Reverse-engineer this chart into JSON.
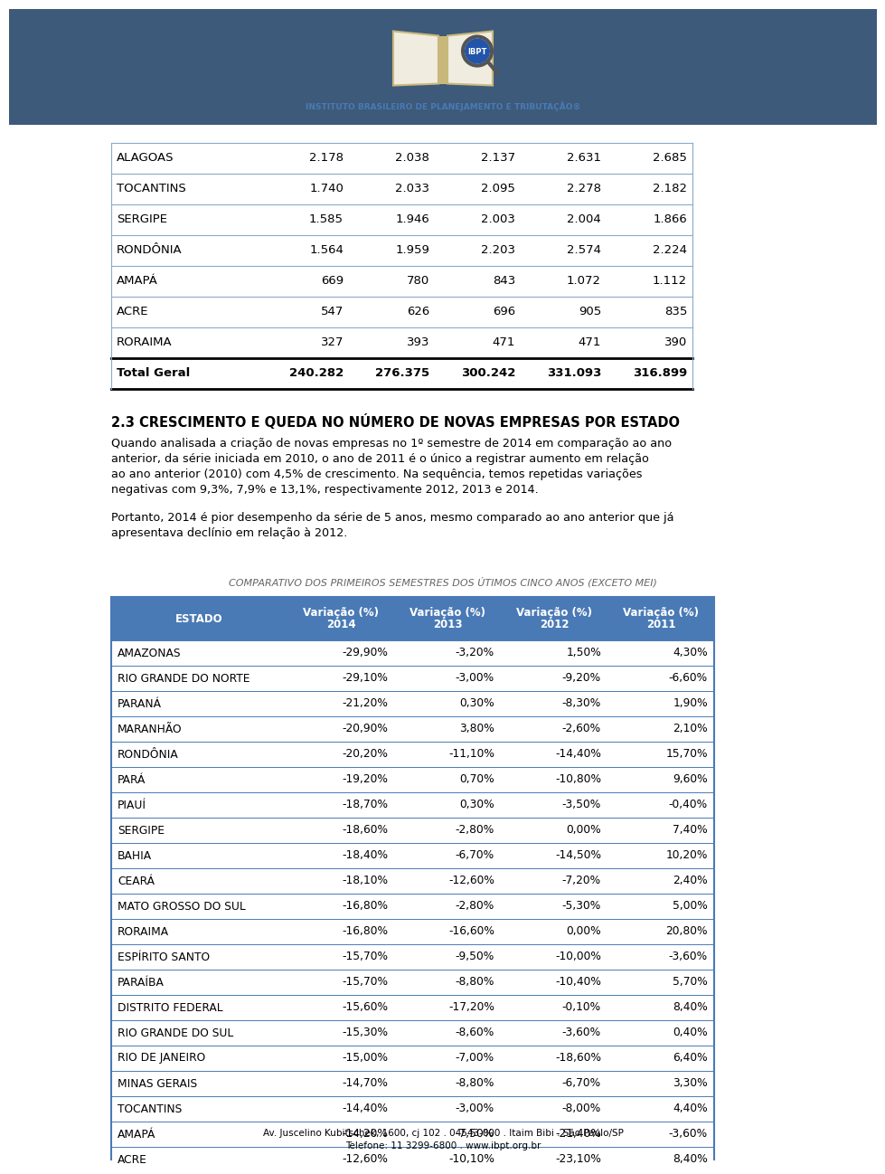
{
  "top_table": {
    "rows": [
      [
        "ALAGOAS",
        "2.178",
        "2.038",
        "2.137",
        "2.631",
        "2.685"
      ],
      [
        "TOCANTINS",
        "1.740",
        "2.033",
        "2.095",
        "2.278",
        "2.182"
      ],
      [
        "SERGIPE",
        "1.585",
        "1.946",
        "2.003",
        "2.004",
        "1.866"
      ],
      [
        "RONDÔNIA",
        "1.564",
        "1.959",
        "2.203",
        "2.574",
        "2.224"
      ],
      [
        "AMAPÁ",
        "669",
        "780",
        "843",
        "1.072",
        "1.112"
      ],
      [
        "ACRE",
        "547",
        "626",
        "696",
        "905",
        "835"
      ],
      [
        "RORAIMA",
        "327",
        "393",
        "471",
        "471",
        "390"
      ]
    ],
    "total_row": [
      "Total Geral",
      "240.282",
      "276.375",
      "300.242",
      "331.093",
      "316.899"
    ]
  },
  "section_title": "2.3 CRESCIMENTO E QUEDA NO NÚMERO DE NOVAS EMPRESAS POR ESTADO",
  "paragraph1": "Quando analisada a criação de novas empresas no 1º semestre de 2014 em comparação ao ano anterior, da série iniciada em 2010, o ano de 2011 é o único a registrar aumento em relação ao ano anterior (2010) com 4,5% de crescimento. Na sequência, temos repetidas variações negativas com 9,3%, 7,9% e 13,1%, respectivamente 2012, 2013 e 2014.",
  "paragraph2": "Portanto, 2014 é pior desempenho da série de 5 anos, mesmo comparado ao ano anterior que já apresentava declínio em relação à 2012.",
  "subtitle": "COMPARATIVO DOS PRIMEIROS SEMESTRES DOS ÚTIMOS CINCO ANOS (EXCETO MEI)",
  "bottom_table": {
    "header": [
      "ESTADO",
      "Variação (%)\n2014",
      "Variação (%)\n2013",
      "Variação (%)\n2012",
      "Variação (%)\n2011"
    ],
    "rows": [
      [
        "AMAZONAS",
        "-29,90%",
        "-3,20%",
        "1,50%",
        "4,30%"
      ],
      [
        "RIO GRANDE DO NORTE",
        "-29,10%",
        "-3,00%",
        "-9,20%",
        "-6,60%"
      ],
      [
        "PARANÁ",
        "-21,20%",
        "0,30%",
        "-8,30%",
        "1,90%"
      ],
      [
        "MARANHÃO",
        "-20,90%",
        "3,80%",
        "-2,60%",
        "2,10%"
      ],
      [
        "RONDÔNIA",
        "-20,20%",
        "-11,10%",
        "-14,40%",
        "15,70%"
      ],
      [
        "PARÁ",
        "-19,20%",
        "0,70%",
        "-10,80%",
        "9,60%"
      ],
      [
        "PIAUÍ",
        "-18,70%",
        "0,30%",
        "-3,50%",
        "-0,40%"
      ],
      [
        "SERGIPE",
        "-18,60%",
        "-2,80%",
        "0,00%",
        "7,40%"
      ],
      [
        "BAHIA",
        "-18,40%",
        "-6,70%",
        "-14,50%",
        "10,20%"
      ],
      [
        "CEARÁ",
        "-18,10%",
        "-12,60%",
        "-7,20%",
        "2,40%"
      ],
      [
        "MATO GROSSO DO SUL",
        "-16,80%",
        "-2,80%",
        "-5,30%",
        "5,00%"
      ],
      [
        "RORAIMA",
        "-16,80%",
        "-16,60%",
        "0,00%",
        "20,80%"
      ],
      [
        "ESPÍRITO SANTO",
        "-15,70%",
        "-9,50%",
        "-10,00%",
        "-3,60%"
      ],
      [
        "PARAÍBA",
        "-15,70%",
        "-8,80%",
        "-10,40%",
        "5,70%"
      ],
      [
        "DISTRITO FEDERAL",
        "-15,60%",
        "-17,20%",
        "-0,10%",
        "8,40%"
      ],
      [
        "RIO GRANDE DO SUL",
        "-15,30%",
        "-8,60%",
        "-3,60%",
        "0,40%"
      ],
      [
        "RIO DE JANEIRO",
        "-15,00%",
        "-7,00%",
        "-18,60%",
        "6,40%"
      ],
      [
        "MINAS GERAIS",
        "-14,70%",
        "-8,80%",
        "-6,70%",
        "3,30%"
      ],
      [
        "TOCANTINS",
        "-14,40%",
        "-3,00%",
        "-8,00%",
        "4,40%"
      ],
      [
        "AMAPÁ",
        "-14,20%",
        "-7,50%",
        "-21,40%",
        "-3,60%"
      ],
      [
        "ACRE",
        "-12,60%",
        "-10,10%",
        "-23,10%",
        "8,40%"
      ]
    ]
  },
  "footer_line1": "Av. Juscelino Kubitschek, 1600, cj 102 . 04543-000 . Itaim Bibi . São Paulo/SP",
  "footer_line2": "Telefone: 11 3299-6800 . www.ibpt.org.br",
  "header_bg": "#3d5a7a",
  "table_header_bg": "#4a7ab5",
  "table_header_text": "#ffffff",
  "table_border": "#4a7ab5",
  "top_table_border": "#8aaac8",
  "page_bg": "#ffffff",
  "text_color": "#000000"
}
